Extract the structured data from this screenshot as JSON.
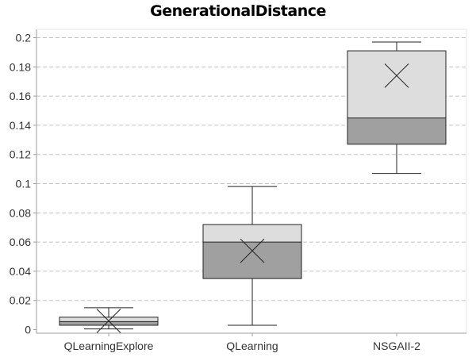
{
  "chart_data": {
    "type": "boxplot",
    "title": "GenerationalDistance",
    "xlabel": "",
    "ylabel": "",
    "ylim": [
      0,
      0.205
    ],
    "yticks": [
      0,
      0.02,
      0.04,
      0.06,
      0.08,
      0.1,
      0.12,
      0.14,
      0.16,
      0.18,
      0.2
    ],
    "ytick_labels": [
      "0",
      "0.02",
      "0.04",
      "0.06",
      "0.08",
      "0.1",
      "0.12",
      "0.14",
      "0.16",
      "0.18",
      "0.2"
    ],
    "grid": true,
    "categories": [
      "QLearningExplore",
      "QLearning",
      "NSGAII-2"
    ],
    "boxes": [
      {
        "category": "QLearningExplore",
        "whisker_low": 0.0005,
        "q1": 0.003,
        "median": 0.0055,
        "q3": 0.0085,
        "whisker_high": 0.015,
        "mean": 0.006
      },
      {
        "category": "QLearning",
        "whisker_low": 0.003,
        "q1": 0.035,
        "median": 0.06,
        "q3": 0.072,
        "whisker_high": 0.098,
        "mean": 0.054
      },
      {
        "category": "NSGAII-2",
        "whisker_low": 0.107,
        "q1": 0.127,
        "median": 0.145,
        "q3": 0.191,
        "whisker_high": 0.197,
        "mean": 0.174
      }
    ],
    "colors": {
      "upper_box": "#dddddd",
      "lower_box": "#a0a0a0",
      "stroke": "#222222",
      "grid": "#c4c4c4",
      "axis": "#9e9e9e"
    }
  }
}
